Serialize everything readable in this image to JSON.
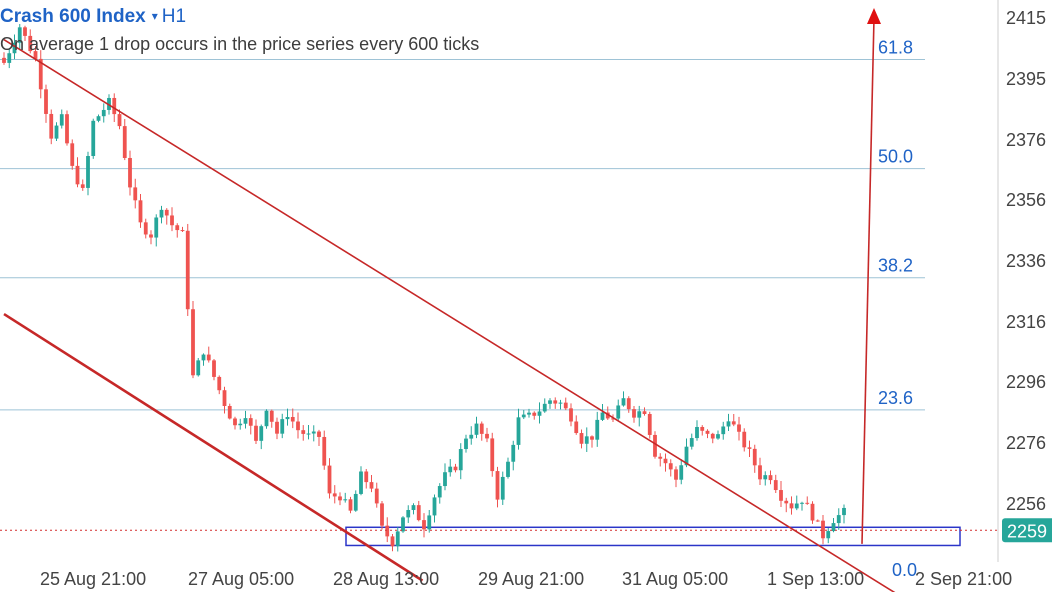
{
  "header": {
    "symbol": "Crash 600 Index",
    "caret": "▾",
    "timeframe": "H1",
    "description": "On average 1 drop occurs in the price series every 600 ticks"
  },
  "colors": {
    "bull": "#26a69a",
    "bear": "#ef5350",
    "trendline": "#c62828",
    "fib_line": "#9ec3d6",
    "fib_text": "#1f63c6",
    "zone_border": "#2b35c8",
    "price_line": "#d32f2f",
    "axis_text": "#444444"
  },
  "chart_data": {
    "type": "candlestick",
    "timeframe": "H1",
    "ylim": [
      22500,
      24200
    ],
    "y_ticks": [
      "2415",
      "2395",
      "2376",
      "2356",
      "2336",
      "2316",
      "2296",
      "2276",
      "2256"
    ],
    "x_ticks": [
      "25 Aug 21:00",
      "27 Aug 05:00",
      "28 Aug 13:00",
      "29 Aug 21:00",
      "31 Aug 05:00",
      "1 Sep 13:00",
      "2 Sep 21:00"
    ],
    "current_price": {
      "label": "2259",
      "value": 22596
    },
    "fibonacci": [
      {
        "level": "61.8",
        "price": 24020
      },
      {
        "level": "50.0",
        "price": 23690
      },
      {
        "level": "38.2",
        "price": 23360
      },
      {
        "level": "23.6",
        "price": 22960
      },
      {
        "level": "0.0",
        "price": 22530
      }
    ],
    "support_zone": {
      "low": 22550,
      "high": 22605
    },
    "close_path": [
      [
        0,
        24010
      ],
      [
        3,
        24120
      ],
      [
        6,
        24020
      ],
      [
        9,
        23790
      ],
      [
        11,
        23840
      ],
      [
        13,
        23690
      ],
      [
        15,
        23620
      ],
      [
        17,
        23830
      ],
      [
        20,
        23890
      ],
      [
        22,
        23820
      ],
      [
        24,
        23640
      ],
      [
        26,
        23520
      ],
      [
        28,
        23490
      ],
      [
        30,
        23580
      ],
      [
        32,
        23520
      ],
      [
        34,
        23490
      ],
      [
        36,
        23060
      ],
      [
        38,
        23140
      ],
      [
        40,
        23060
      ],
      [
        42,
        22980
      ],
      [
        44,
        22910
      ],
      [
        46,
        22950
      ],
      [
        48,
        22860
      ],
      [
        50,
        22970
      ],
      [
        52,
        22890
      ],
      [
        54,
        22950
      ],
      [
        56,
        22900
      ],
      [
        58,
        22880
      ],
      [
        60,
        22880
      ],
      [
        62,
        22700
      ],
      [
        64,
        22700
      ],
      [
        66,
        22650
      ],
      [
        68,
        22760
      ],
      [
        70,
        22730
      ],
      [
        72,
        22600
      ],
      [
        74,
        22560
      ],
      [
        76,
        22640
      ],
      [
        78,
        22660
      ],
      [
        80,
        22610
      ],
      [
        82,
        22700
      ],
      [
        84,
        22760
      ],
      [
        86,
        22790
      ],
      [
        88,
        22880
      ],
      [
        90,
        22910
      ],
      [
        92,
        22860
      ],
      [
        94,
        22700
      ],
      [
        96,
        22800
      ],
      [
        98,
        22930
      ],
      [
        100,
        22940
      ],
      [
        102,
        22960
      ],
      [
        104,
        22990
      ],
      [
        106,
        22980
      ],
      [
        108,
        22940
      ],
      [
        110,
        22870
      ],
      [
        112,
        22880
      ],
      [
        114,
        22950
      ],
      [
        116,
        22930
      ],
      [
        118,
        22990
      ],
      [
        120,
        22950
      ],
      [
        122,
        22960
      ],
      [
        124,
        22830
      ],
      [
        126,
        22800
      ],
      [
        128,
        22750
      ],
      [
        130,
        22850
      ],
      [
        132,
        22900
      ],
      [
        134,
        22880
      ],
      [
        136,
        22880
      ],
      [
        138,
        22940
      ],
      [
        140,
        22880
      ],
      [
        142,
        22830
      ],
      [
        144,
        22760
      ],
      [
        146,
        22760
      ],
      [
        148,
        22700
      ],
      [
        150,
        22670
      ],
      [
        152,
        22690
      ],
      [
        154,
        22640
      ],
      [
        156,
        22580
      ],
      [
        158,
        22630
      ],
      [
        160,
        22650
      ]
    ]
  },
  "annotations": {
    "upper_trendline": [
      [
        0,
        24080
      ],
      [
        154,
        22520
      ]
    ],
    "lower_trendline": [
      [
        0,
        23250
      ],
      [
        74,
        22480
      ]
    ],
    "projection_arrow": [
      [
        154,
        22570
      ],
      [
        158,
        24200
      ]
    ]
  }
}
